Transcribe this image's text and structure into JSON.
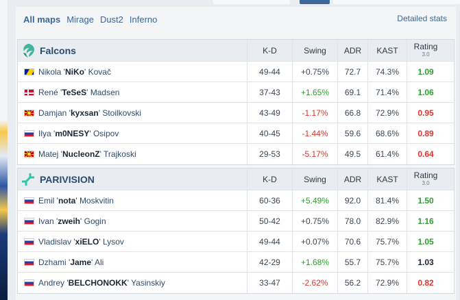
{
  "maps": {
    "items": [
      "All maps",
      "Mirage",
      "Dust2",
      "Inferno"
    ],
    "active": "All maps",
    "detailed_stats": "Detailed stats"
  },
  "columns": {
    "kd": "K-D",
    "swing": "Swing",
    "adr": "ADR",
    "kast": "KAST",
    "rating": "Rating",
    "rating_version": "3.0"
  },
  "teams": [
    {
      "name": "Falcons",
      "logo_icon": "falcons-logo-icon",
      "logo_color": "#3fb59b",
      "players": [
        {
          "first": "Nikola '",
          "nick": "NiKo",
          "last": "' Kovač",
          "flag": "ba",
          "kd": "49-44",
          "swing": "+0.75%",
          "swing_class": "neu",
          "adr": "72.7",
          "kast": "74.3%",
          "rating": "1.09",
          "rating_class": "r-good"
        },
        {
          "first": "René '",
          "nick": "TeSeS",
          "last": "' Madsen",
          "flag": "dk",
          "kd": "37-43",
          "swing": "+1.65%",
          "swing_class": "pos",
          "adr": "69.1",
          "kast": "71.4%",
          "rating": "1.06",
          "rating_class": "r-good"
        },
        {
          "first": "Damjan '",
          "nick": "kyxsan",
          "last": "' Stoilkovski",
          "flag": "mk",
          "kd": "43-49",
          "swing": "-1.17%",
          "swing_class": "neg",
          "adr": "66.8",
          "kast": "72.9%",
          "rating": "0.95",
          "rating_class": "r-bad"
        },
        {
          "first": "Ilya '",
          "nick": "m0NESY",
          "last": "' Osipov",
          "flag": "ru",
          "kd": "40-45",
          "swing": "-1.44%",
          "swing_class": "neg",
          "adr": "59.6",
          "kast": "68.6%",
          "rating": "0.89",
          "rating_class": "r-bad"
        },
        {
          "first": "Matej '",
          "nick": "NucleonZ",
          "last": "' Trajkoski",
          "flag": "mk",
          "kd": "29-53",
          "swing": "-5.17%",
          "swing_class": "neg",
          "adr": "49.5",
          "kast": "61.4%",
          "rating": "0.64",
          "rating_class": "r-bad"
        }
      ]
    },
    {
      "name": "PARIVISION",
      "logo_icon": "parivision-logo-icon",
      "logo_color": "#2fc7a5",
      "players": [
        {
          "first": "Emil '",
          "nick": "nota",
          "last": "' Moskvitin",
          "flag": "ru",
          "kd": "60-36",
          "swing": "+5.49%",
          "swing_class": "pos",
          "adr": "92.0",
          "kast": "81.4%",
          "rating": "1.50",
          "rating_class": "r-good"
        },
        {
          "first": "Ivan '",
          "nick": "zweih",
          "last": "' Gogin",
          "flag": "ru",
          "kd": "50-42",
          "swing": "+0.75%",
          "swing_class": "neu",
          "adr": "78.0",
          "kast": "82.9%",
          "rating": "1.16",
          "rating_class": "r-good"
        },
        {
          "first": "Vladislav '",
          "nick": "xiELO",
          "last": "' Lysov",
          "flag": "ru",
          "kd": "49-44",
          "swing": "+0.07%",
          "swing_class": "neu",
          "adr": "70.6",
          "kast": "75.7%",
          "rating": "1.05",
          "rating_class": "r-good"
        },
        {
          "first": "Dzhami '",
          "nick": "Jame",
          "last": "' Ali",
          "flag": "ru",
          "kd": "42-29",
          "swing": "+1.68%",
          "swing_class": "pos",
          "adr": "55.7",
          "kast": "75.7%",
          "rating": "1.03",
          "rating_class": "r-neu"
        },
        {
          "first": "Andrey '",
          "nick": "BELCHONOKK",
          "last": "' Yasinskiy",
          "flag": "ru",
          "kd": "33-47",
          "swing": "-2.62%",
          "swing_class": "neg",
          "adr": "56.2",
          "kast": "72.9%",
          "rating": "0.82",
          "rating_class": "r-bad"
        }
      ]
    }
  ],
  "colors": {
    "link": "#3a6797",
    "positive": "#2f9e2f",
    "negative": "#d9352c",
    "header_bg": "#e9ecf1"
  }
}
